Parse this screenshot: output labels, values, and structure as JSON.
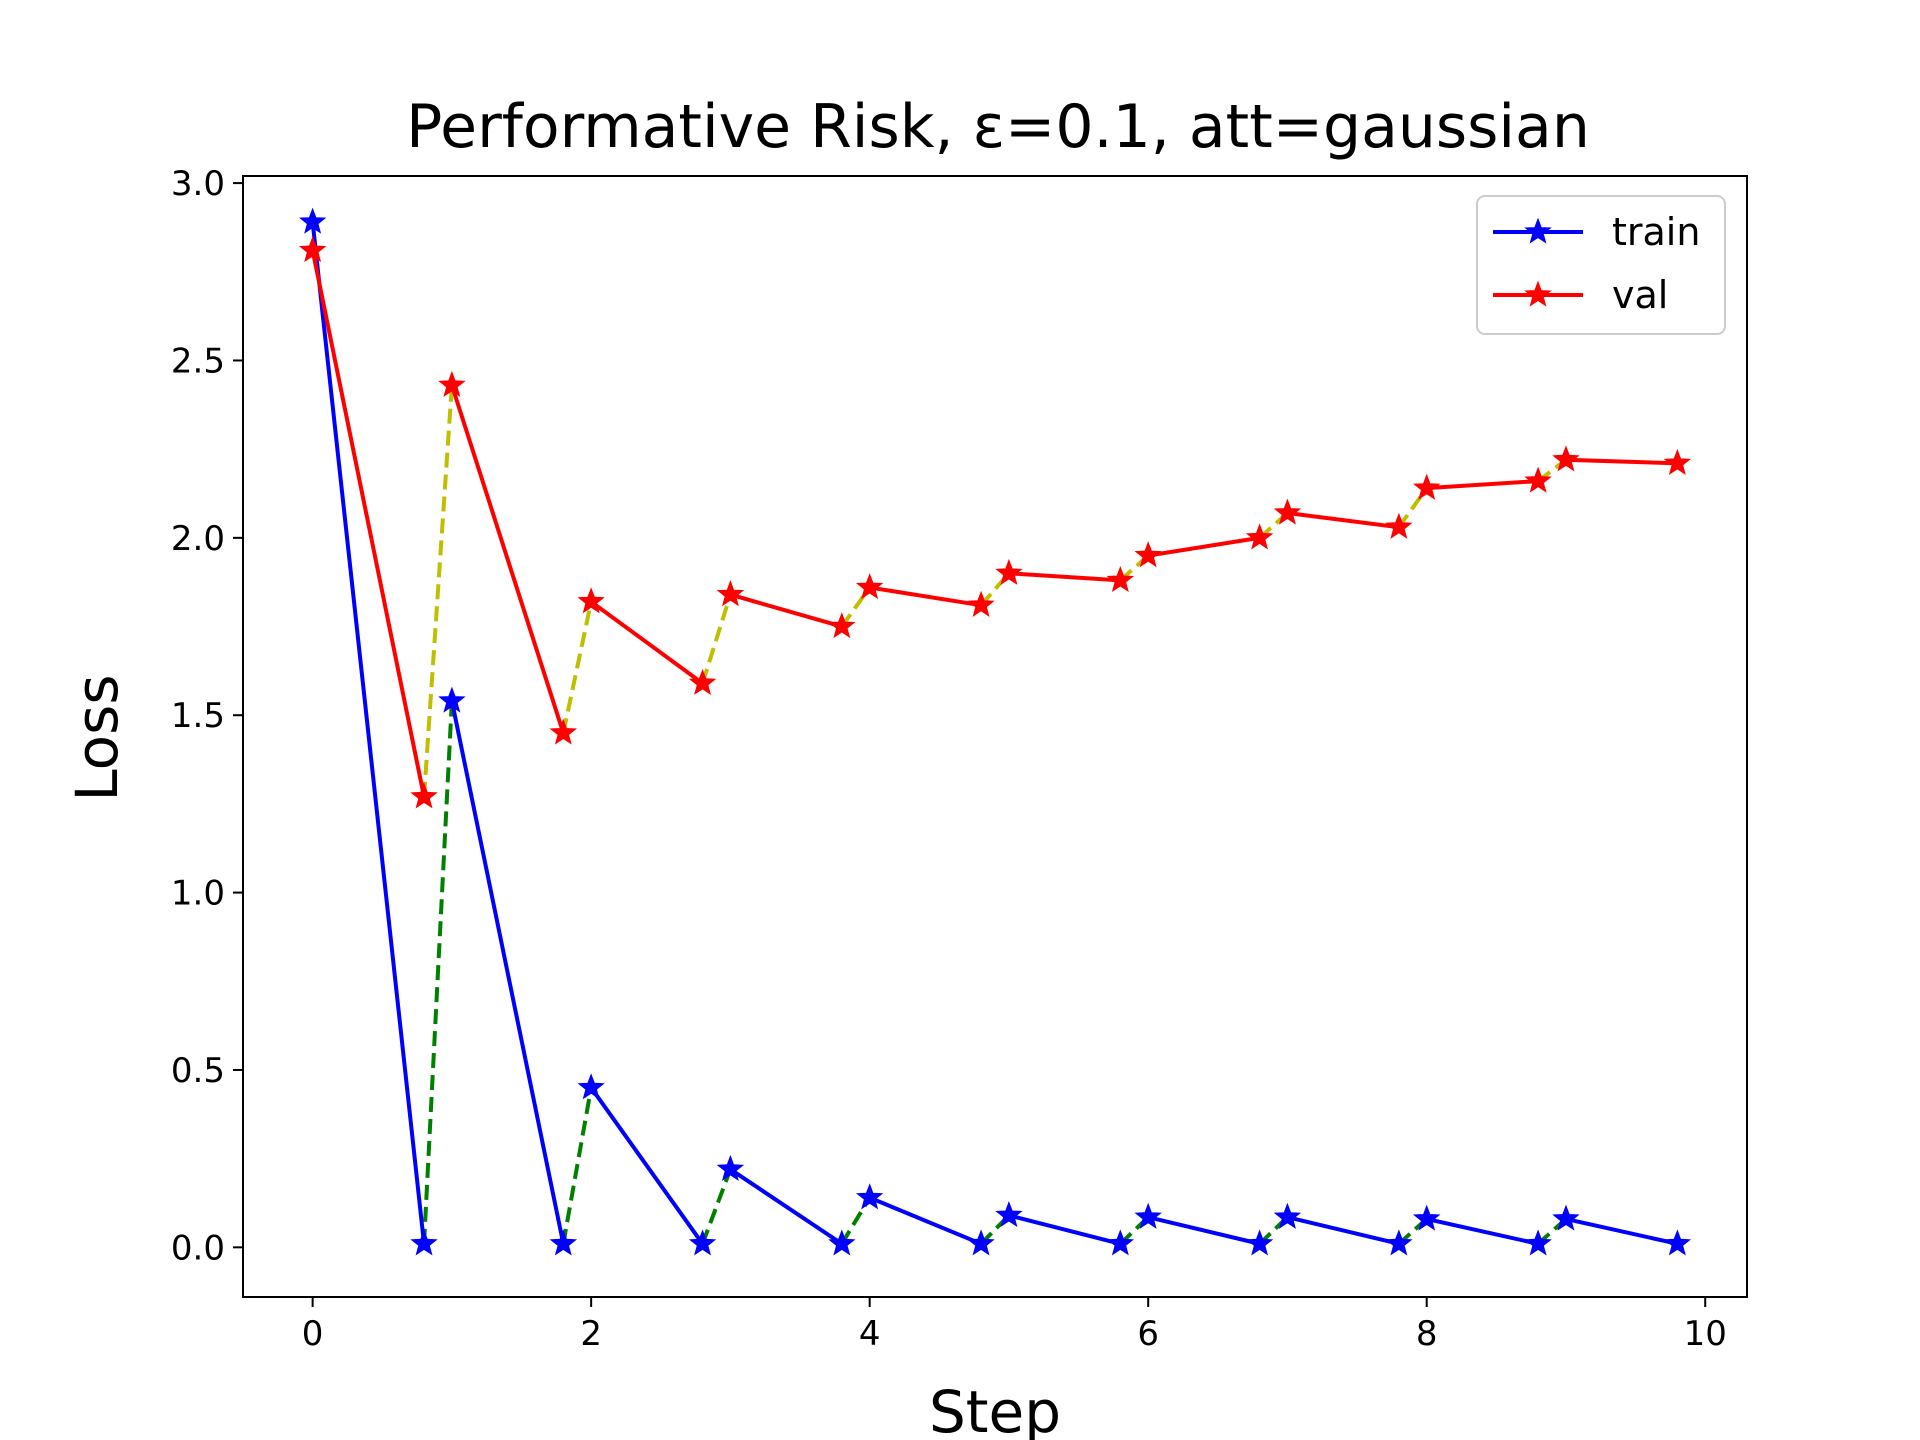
{
  "chart_data": {
    "type": "line",
    "title": "Performative Risk, ε=0.1, att=gaussian",
    "xlabel": "Step",
    "ylabel": "Loss",
    "xlim": [
      -0.5,
      10.3
    ],
    "ylim": [
      -0.14,
      3.02
    ],
    "x_ticks": [
      0,
      2,
      4,
      6,
      8,
      10
    ],
    "x_tick_labels": [
      "0",
      "2",
      "4",
      "6",
      "8",
      "10"
    ],
    "y_ticks": [
      0.0,
      0.5,
      1.0,
      1.5,
      2.0,
      2.5,
      3.0
    ],
    "y_tick_labels": [
      "0.0",
      "0.5",
      "1.0",
      "1.5",
      "2.0",
      "2.5",
      "3.0"
    ],
    "grid": false,
    "legend_position": "top-right",
    "series": [
      {
        "name": "train",
        "color": "#0000ff",
        "marker": "star",
        "segments": [
          {
            "x": [
              0,
              0.8
            ],
            "y": [
              2.89,
              0.01
            ]
          },
          {
            "x": [
              1,
              1.8
            ],
            "y": [
              1.54,
              0.01
            ]
          },
          {
            "x": [
              2,
              2.8
            ],
            "y": [
              0.45,
              0.01
            ]
          },
          {
            "x": [
              3,
              3.8
            ],
            "y": [
              0.22,
              0.01
            ]
          },
          {
            "x": [
              4,
              4.8
            ],
            "y": [
              0.14,
              0.01
            ]
          },
          {
            "x": [
              5,
              5.8
            ],
            "y": [
              0.09,
              0.01
            ]
          },
          {
            "x": [
              6,
              6.8
            ],
            "y": [
              0.085,
              0.01
            ]
          },
          {
            "x": [
              7,
              7.8
            ],
            "y": [
              0.085,
              0.01
            ]
          },
          {
            "x": [
              8,
              8.8
            ],
            "y": [
              0.08,
              0.01
            ]
          },
          {
            "x": [
              9,
              9.8
            ],
            "y": [
              0.08,
              0.01
            ]
          }
        ]
      },
      {
        "name": "val",
        "color": "#ff0000",
        "marker": "star",
        "segments": [
          {
            "x": [
              0,
              0.8
            ],
            "y": [
              2.81,
              1.27
            ]
          },
          {
            "x": [
              1,
              1.8
            ],
            "y": [
              2.43,
              1.45
            ]
          },
          {
            "x": [
              2,
              2.8
            ],
            "y": [
              1.82,
              1.59
            ]
          },
          {
            "x": [
              3,
              3.8
            ],
            "y": [
              1.84,
              1.75
            ]
          },
          {
            "x": [
              4,
              4.8
            ],
            "y": [
              1.86,
              1.81
            ]
          },
          {
            "x": [
              5,
              5.8
            ],
            "y": [
              1.9,
              1.88
            ]
          },
          {
            "x": [
              6,
              6.8
            ],
            "y": [
              1.95,
              2.0
            ]
          },
          {
            "x": [
              7,
              7.8
            ],
            "y": [
              2.07,
              2.03
            ]
          },
          {
            "x": [
              8,
              8.8
            ],
            "y": [
              2.14,
              2.16
            ]
          },
          {
            "x": [
              9,
              9.8
            ],
            "y": [
              2.22,
              2.21
            ]
          }
        ]
      }
    ],
    "transitions": [
      {
        "of": "train",
        "color": "#008000",
        "style": "dashed"
      },
      {
        "of": "val",
        "color": "#bfbf00",
        "style": "dashed"
      }
    ]
  }
}
